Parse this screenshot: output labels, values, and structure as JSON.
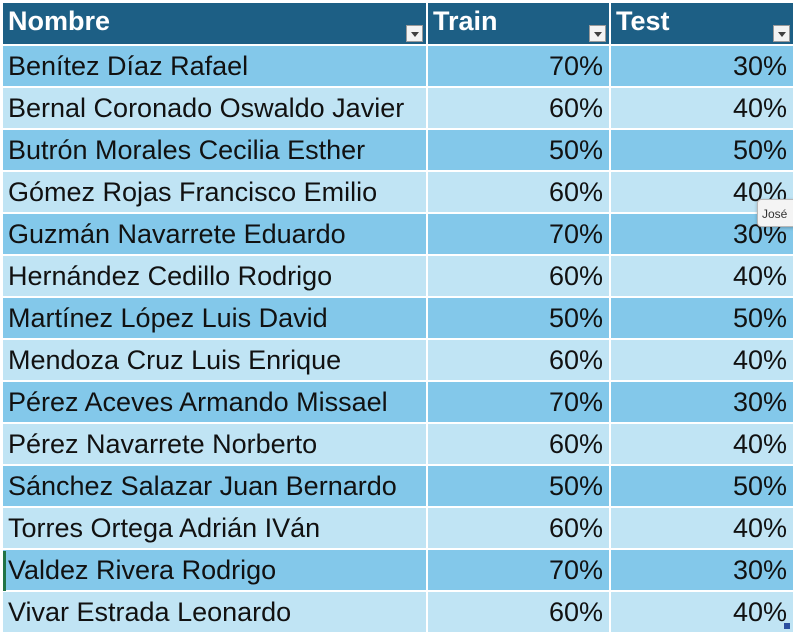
{
  "table": {
    "columns": [
      "Nombre",
      "Train",
      "Test"
    ],
    "rows": [
      {
        "nombre": "Benítez Díaz Rafael",
        "train": "70%",
        "test": "30%"
      },
      {
        "nombre": "Bernal Coronado Oswaldo Javier",
        "train": "60%",
        "test": "40%"
      },
      {
        "nombre": "Butrón Morales Cecilia Esther",
        "train": "50%",
        "test": "50%"
      },
      {
        "nombre": "Gómez Rojas Francisco Emilio",
        "train": "60%",
        "test": "40%"
      },
      {
        "nombre": "Guzmán Navarrete Eduardo",
        "train": "70%",
        "test": "30%"
      },
      {
        "nombre": "Hernández Cedillo Rodrigo",
        "train": "60%",
        "test": "40%"
      },
      {
        "nombre": "Martínez López Luis David",
        "train": "50%",
        "test": "50%"
      },
      {
        "nombre": "Mendoza Cruz Luis Enrique",
        "train": "60%",
        "test": "40%"
      },
      {
        "nombre": "Pérez Aceves Armando Missael",
        "train": "70%",
        "test": "30%"
      },
      {
        "nombre": "Pérez Navarrete Norberto",
        "train": "60%",
        "test": "40%"
      },
      {
        "nombre": "Sánchez Salazar Juan Bernardo",
        "train": "50%",
        "test": "50%"
      },
      {
        "nombre": "Torres Ortega Adrián IVán",
        "train": "60%",
        "test": "40%"
      },
      {
        "nombre": "Valdez Rivera Rodrigo",
        "train": "70%",
        "test": "30%"
      },
      {
        "nombre": "Vivar Estrada Leonardo",
        "train": "60%",
        "test": "40%"
      }
    ]
  },
  "tooltip": {
    "text": "José"
  },
  "colors": {
    "header_bg": "#1d5f85",
    "row_dark": "#83c8ea",
    "row_light": "#c0e4f4"
  },
  "icons": {
    "filter": "filter-dropdown-icon",
    "resize": "table-resize-handle-icon"
  }
}
